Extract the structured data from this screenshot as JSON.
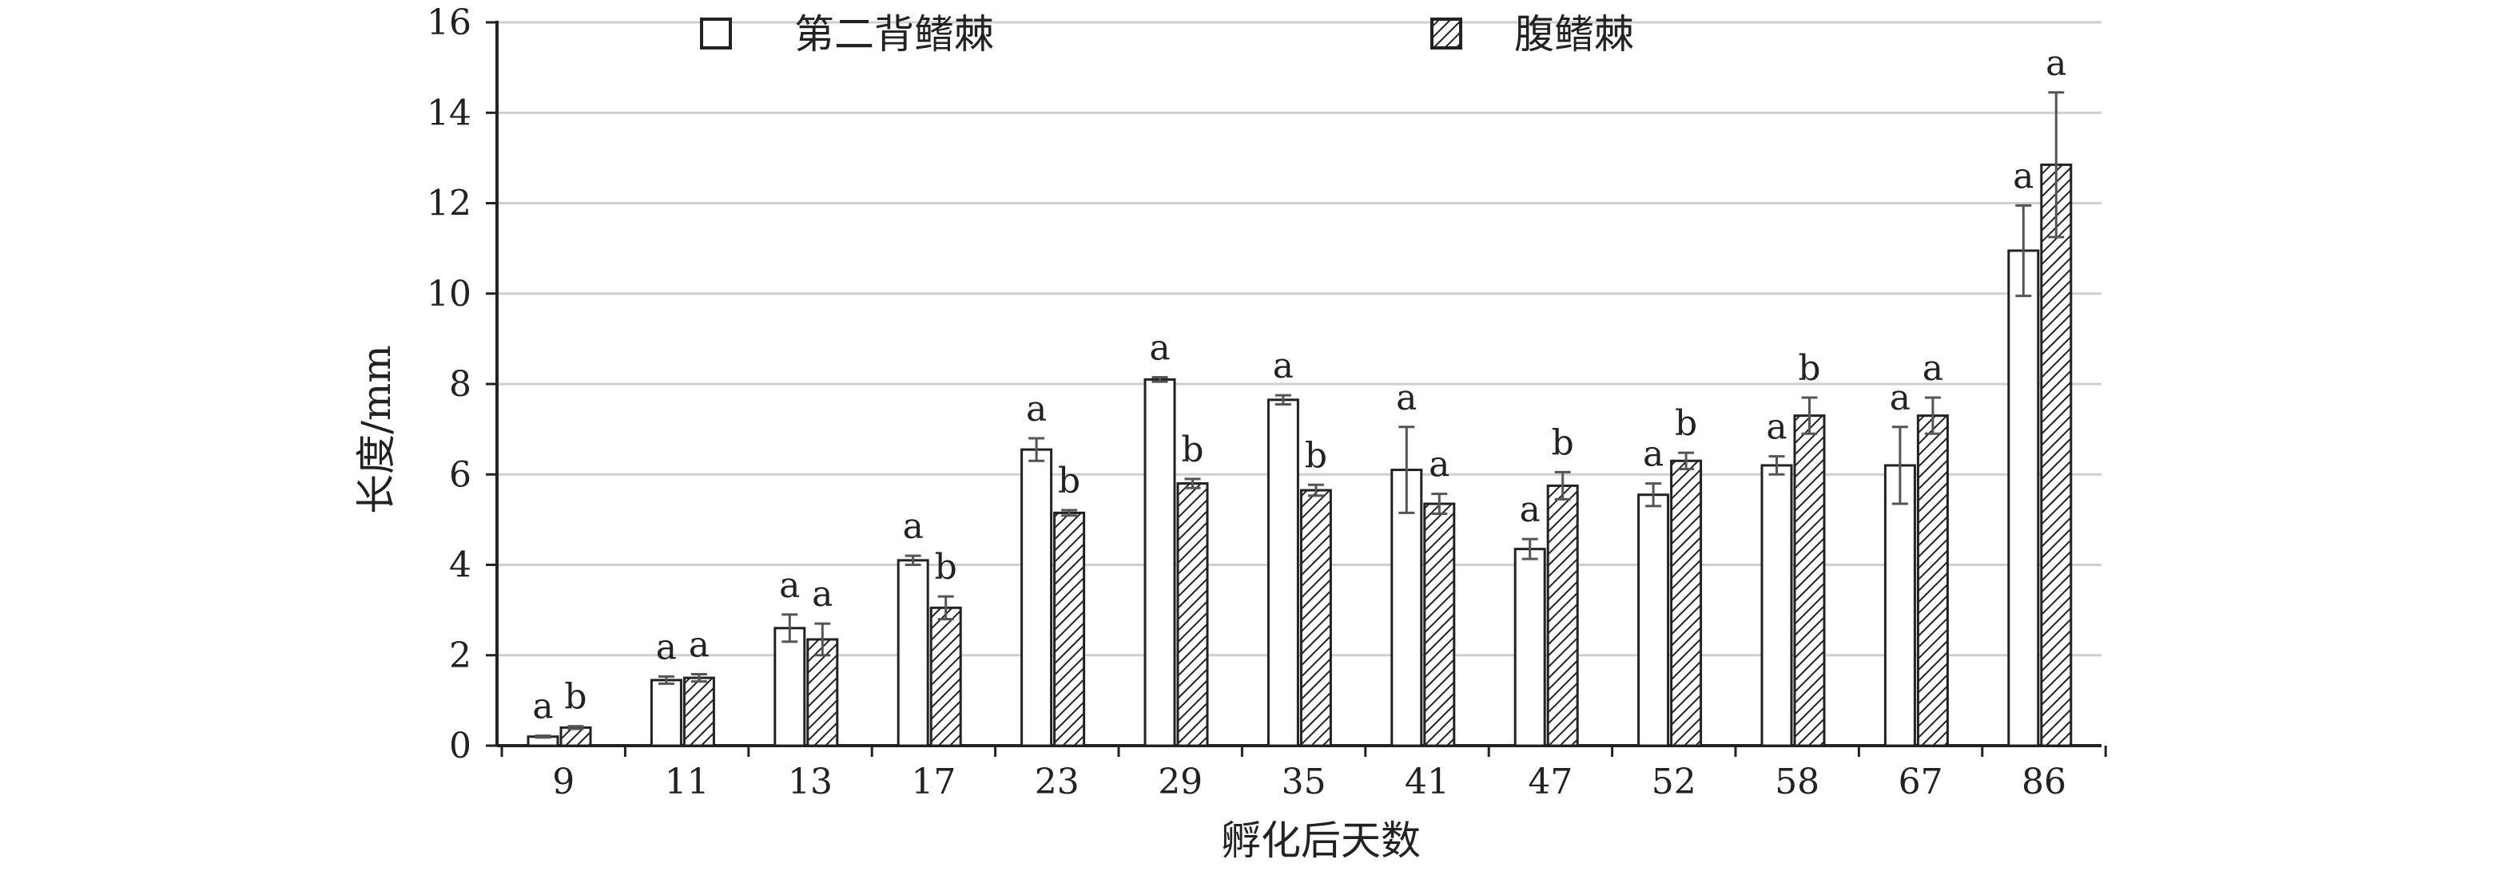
{
  "chart_data": {
    "type": "bar",
    "xlabel": "孵化后天数",
    "ylabel": "长度/mm",
    "ylim": [
      0,
      16
    ],
    "yticks": [
      0,
      2,
      4,
      6,
      8,
      10,
      12,
      14,
      16
    ],
    "categories": [
      "9",
      "11",
      "13",
      "17",
      "23",
      "29",
      "35",
      "41",
      "47",
      "52",
      "58",
      "67",
      "86"
    ],
    "grid": true,
    "legend_position": "top",
    "series": [
      {
        "name": "第二背鳍棘",
        "pattern": "hollow",
        "values": [
          0.2,
          1.45,
          2.6,
          4.1,
          6.55,
          8.1,
          7.65,
          6.1,
          4.35,
          5.55,
          6.2,
          6.2,
          10.95
        ],
        "errors": [
          0.02,
          0.08,
          0.3,
          0.1,
          0.25,
          0.05,
          0.1,
          0.95,
          0.22,
          0.25,
          0.2,
          0.85,
          1.0
        ],
        "labels": [
          "a",
          "a",
          "a",
          "a",
          "a",
          "a",
          "a",
          "a",
          "a",
          "a",
          "a",
          "a",
          "a"
        ]
      },
      {
        "name": "腹鳍棘",
        "pattern": "hatched",
        "values": [
          0.4,
          1.5,
          2.35,
          3.05,
          5.15,
          5.8,
          5.65,
          5.35,
          5.75,
          6.3,
          7.3,
          7.3,
          12.85
        ],
        "errors": [
          0.03,
          0.08,
          0.35,
          0.25,
          0.06,
          0.1,
          0.12,
          0.22,
          0.3,
          0.18,
          0.4,
          0.4,
          1.6
        ],
        "labels": [
          "b",
          "a",
          "a",
          "b",
          "b",
          "b",
          "b",
          "a",
          "b",
          "b",
          "b",
          "a",
          "a"
        ]
      }
    ],
    "colors": {
      "stroke": "#222222",
      "grid": "#cfcfcf",
      "error": "#555555",
      "fill": "#ffffff"
    }
  }
}
